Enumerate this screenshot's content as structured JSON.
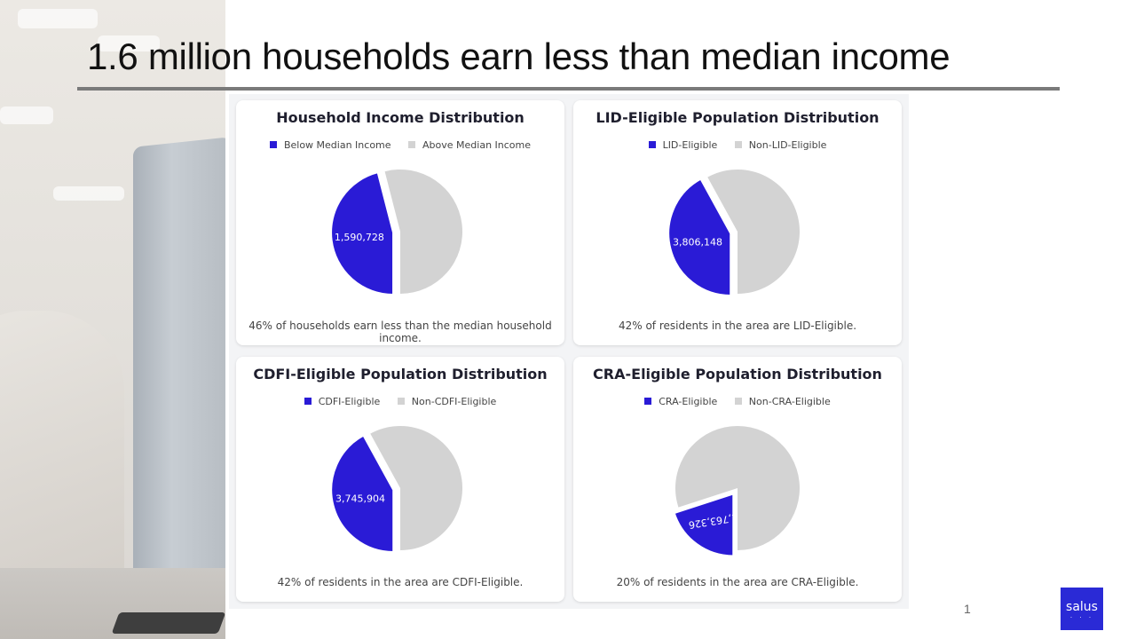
{
  "slide": {
    "title": "1.6 million households earn less than median income",
    "page_number": "1",
    "logo_text": "salus"
  },
  "colors": {
    "accent": "#2a1bd6",
    "other": "#d3d3d3",
    "title_rule": "#7a7a7a"
  },
  "chart_data": [
    {
      "type": "pie",
      "title": "Household Income Distribution",
      "series": [
        {
          "name": "Below Median Income",
          "value": 1590728,
          "percent": 46,
          "label": "1,590,728"
        },
        {
          "name": "Above Median Income",
          "percent": 54
        }
      ],
      "legend": "top",
      "caption": "46% of households earn less than the median household income."
    },
    {
      "type": "pie",
      "title": "LID-Eligible Population Distribution",
      "series": [
        {
          "name": "LID-Eligible",
          "value": 3806148,
          "percent": 42,
          "label": "3,806,148"
        },
        {
          "name": "Non-LID-Eligible",
          "percent": 58
        }
      ],
      "legend": "top",
      "caption": "42% of residents in the area are LID-Eligible."
    },
    {
      "type": "pie",
      "title": "CDFI-Eligible Population Distribution",
      "series": [
        {
          "name": "CDFI-Eligible",
          "value": 3745904,
          "percent": 42,
          "label": "3,745,904"
        },
        {
          "name": "Non-CDFI-Eligible",
          "percent": 58
        }
      ],
      "legend": "top",
      "caption": "42% of residents in the area are CDFI-Eligible."
    },
    {
      "type": "pie",
      "title": "CRA-Eligible Population Distribution",
      "series": [
        {
          "name": "CRA-Eligible",
          "value": 1763326,
          "percent": 20,
          "label": "1,763,326"
        },
        {
          "name": "Non-CRA-Eligible",
          "percent": 80
        }
      ],
      "legend": "top",
      "caption": "20% of residents in the area are CRA-Eligible."
    }
  ]
}
